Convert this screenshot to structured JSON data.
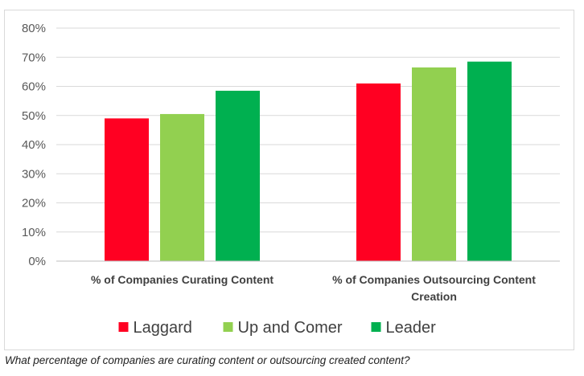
{
  "caption": "What percentage of companies are curating content or outsourcing created content?",
  "chart_data": {
    "type": "bar",
    "title": "",
    "xlabel": "",
    "ylabel": "",
    "ylim": [
      0,
      80
    ],
    "ytick_values": [
      0,
      10,
      20,
      30,
      40,
      50,
      60,
      70,
      80
    ],
    "ytick_labels": [
      "0%",
      "10%",
      "20%",
      "30%",
      "40%",
      "50%",
      "60%",
      "70%",
      "80%"
    ],
    "categories": [
      [
        "% of Companies Curating Content"
      ],
      [
        "% of Companies Outsourcing Content",
        "Creation"
      ]
    ],
    "series": [
      {
        "name": "Laggard",
        "color": "#ff0022",
        "values": [
          49,
          61
        ]
      },
      {
        "name": "Up and Comer",
        "color": "#92d050",
        "values": [
          50.5,
          66.5
        ]
      },
      {
        "name": "Leader",
        "color": "#00b050",
        "values": [
          58.5,
          68.5
        ]
      }
    ],
    "grid": true,
    "legend_position": "bottom"
  }
}
